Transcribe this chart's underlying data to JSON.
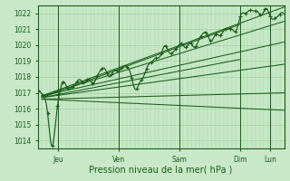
{
  "xlabel": "Pression niveau de la mer( hPa )",
  "ylim": [
    1013.5,
    1022.5
  ],
  "yticks": [
    1014,
    1015,
    1016,
    1017,
    1018,
    1019,
    1020,
    1021,
    1022
  ],
  "bg_color": "#c8e8c8",
  "grid_color": "#99cc99",
  "line_color": "#1a5c1a",
  "fig_bg": "#c8e8c8",
  "xlim": [
    0.0,
    3.05
  ],
  "day_ticks": [
    0.25,
    1.0,
    1.75,
    2.5,
    2.875
  ],
  "day_labels": [
    "Jeu",
    "Ven",
    "Sam",
    "Dim",
    "Lun"
  ],
  "trend_lines": [
    {
      "x0": 0.05,
      "y0": 1016.8,
      "x1": 3.05,
      "y1": 1022.4
    },
    {
      "x0": 0.05,
      "y0": 1016.8,
      "x1": 3.05,
      "y1": 1021.5
    },
    {
      "x0": 0.05,
      "y0": 1016.8,
      "x1": 3.05,
      "y1": 1020.2
    },
    {
      "x0": 0.05,
      "y0": 1016.7,
      "x1": 3.05,
      "y1": 1018.8
    },
    {
      "x0": 0.05,
      "y0": 1016.7,
      "x1": 2.5,
      "y1": 1021.3
    },
    {
      "x0": 0.05,
      "y0": 1016.7,
      "x1": 2.5,
      "y1": 1019.1
    },
    {
      "x0": 0.05,
      "y0": 1016.6,
      "x1": 3.05,
      "y1": 1017.0
    },
    {
      "x0": 0.05,
      "y0": 1016.6,
      "x1": 3.05,
      "y1": 1015.9
    }
  ]
}
